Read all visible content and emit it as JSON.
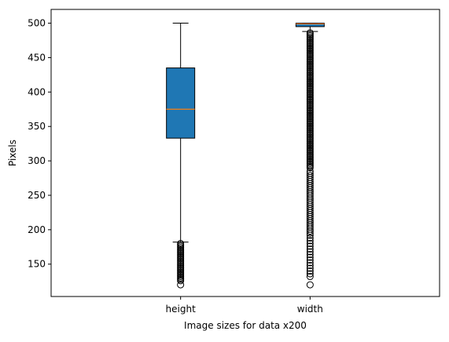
{
  "chart_data": {
    "type": "box",
    "title": "",
    "xlabel": "Image sizes for data x200",
    "ylabel": "Pixels",
    "ylim": [
      103,
      520
    ],
    "yticks": [
      150,
      200,
      250,
      300,
      350,
      400,
      450,
      500
    ],
    "categories": [
      "height",
      "width"
    ],
    "grid": false,
    "legend": "none",
    "colors": {
      "box_fill": "#1f77b4",
      "median": "#ff7f0e",
      "line": "#000000"
    },
    "boxes": [
      {
        "label": "height",
        "q1": 333,
        "median": 375,
        "q3": 435,
        "whisker_low": 182,
        "whisker_high": 500,
        "outliers": [
          180,
          178,
          176,
          174,
          172,
          170,
          168,
          166,
          164,
          162,
          160,
          158,
          156,
          154,
          152,
          150,
          148,
          146,
          144,
          142,
          140,
          138,
          136,
          134,
          132,
          130,
          128,
          126,
          120
        ]
      },
      {
        "label": "width",
        "q1": 495,
        "median": 499,
        "q3": 500,
        "whisker_low": 488,
        "whisker_high": 500,
        "outlier_dense_range": [
          290,
          486
        ],
        "outliers": [
          285,
          282,
          279,
          276,
          273,
          270,
          267,
          264,
          261,
          258,
          255,
          252,
          249,
          246,
          243,
          240,
          237,
          234,
          231,
          228,
          225,
          222,
          219,
          216,
          213,
          210,
          207,
          204,
          201,
          198,
          195,
          192,
          188,
          184,
          180,
          176,
          172,
          168,
          164,
          160,
          156,
          152,
          148,
          144,
          140,
          136,
          132,
          120
        ]
      }
    ]
  }
}
